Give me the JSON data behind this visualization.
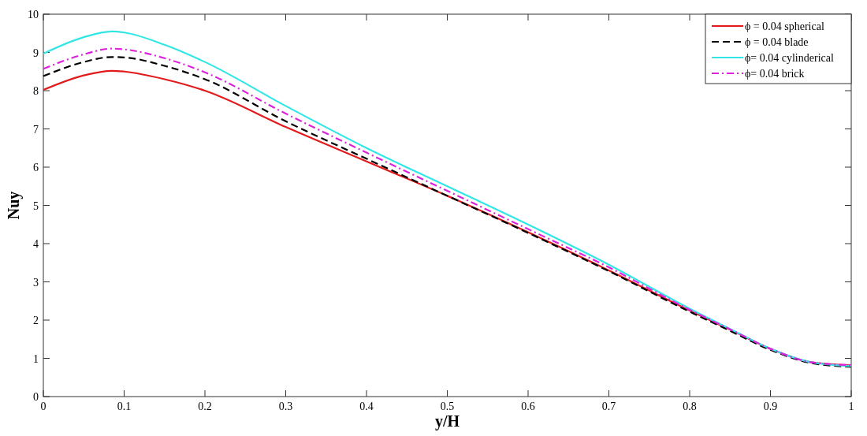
{
  "chart_data": {
    "type": "line",
    "xlabel": "y/H",
    "ylabel": "Nuy",
    "xlim": [
      0,
      1
    ],
    "ylim": [
      0,
      10
    ],
    "xticks": [
      0,
      0.1,
      0.2,
      0.3,
      0.4,
      0.5,
      0.6,
      0.7,
      0.8,
      0.9,
      1
    ],
    "yticks": [
      0,
      1,
      2,
      3,
      4,
      5,
      6,
      7,
      8,
      9,
      10
    ],
    "x": [
      0,
      0.05,
      0.085,
      0.1,
      0.15,
      0.2,
      0.3,
      0.4,
      0.5,
      0.6,
      0.7,
      0.8,
      0.85,
      0.9,
      0.95,
      1
    ],
    "legend": "top right",
    "grid": false,
    "series": [
      {
        "name": "ϕ = 0.04 spherical",
        "color": "#e31a1c",
        "line_style": "solid",
        "values": [
          8.02,
          8.4,
          8.52,
          8.5,
          8.3,
          8.0,
          7.05,
          6.15,
          5.25,
          4.3,
          3.3,
          2.25,
          1.75,
          1.25,
          0.9,
          0.82
        ]
      },
      {
        "name": "ϕ = 0.04 blade",
        "color": "#000000",
        "line_style": "dashed",
        "values": [
          8.38,
          8.75,
          8.88,
          8.87,
          8.65,
          8.3,
          7.2,
          6.22,
          5.25,
          4.28,
          3.28,
          2.22,
          1.72,
          1.22,
          0.88,
          0.78
        ]
      },
      {
        "name": "ϕ= 0.04 cylinderical",
        "color": "#33e6e6",
        "line_style": "solid",
        "values": [
          8.97,
          9.4,
          9.55,
          9.52,
          9.2,
          8.75,
          7.6,
          6.5,
          5.5,
          4.5,
          3.45,
          2.3,
          1.77,
          1.25,
          0.9,
          0.8
        ]
      },
      {
        "name": "ϕ= 0.04 brick",
        "color": "#dd22dd",
        "line_style": "dashdot",
        "values": [
          8.57,
          8.95,
          9.1,
          9.08,
          8.85,
          8.48,
          7.4,
          6.38,
          5.38,
          4.38,
          3.38,
          2.27,
          1.76,
          1.25,
          0.9,
          0.82
        ]
      }
    ]
  }
}
